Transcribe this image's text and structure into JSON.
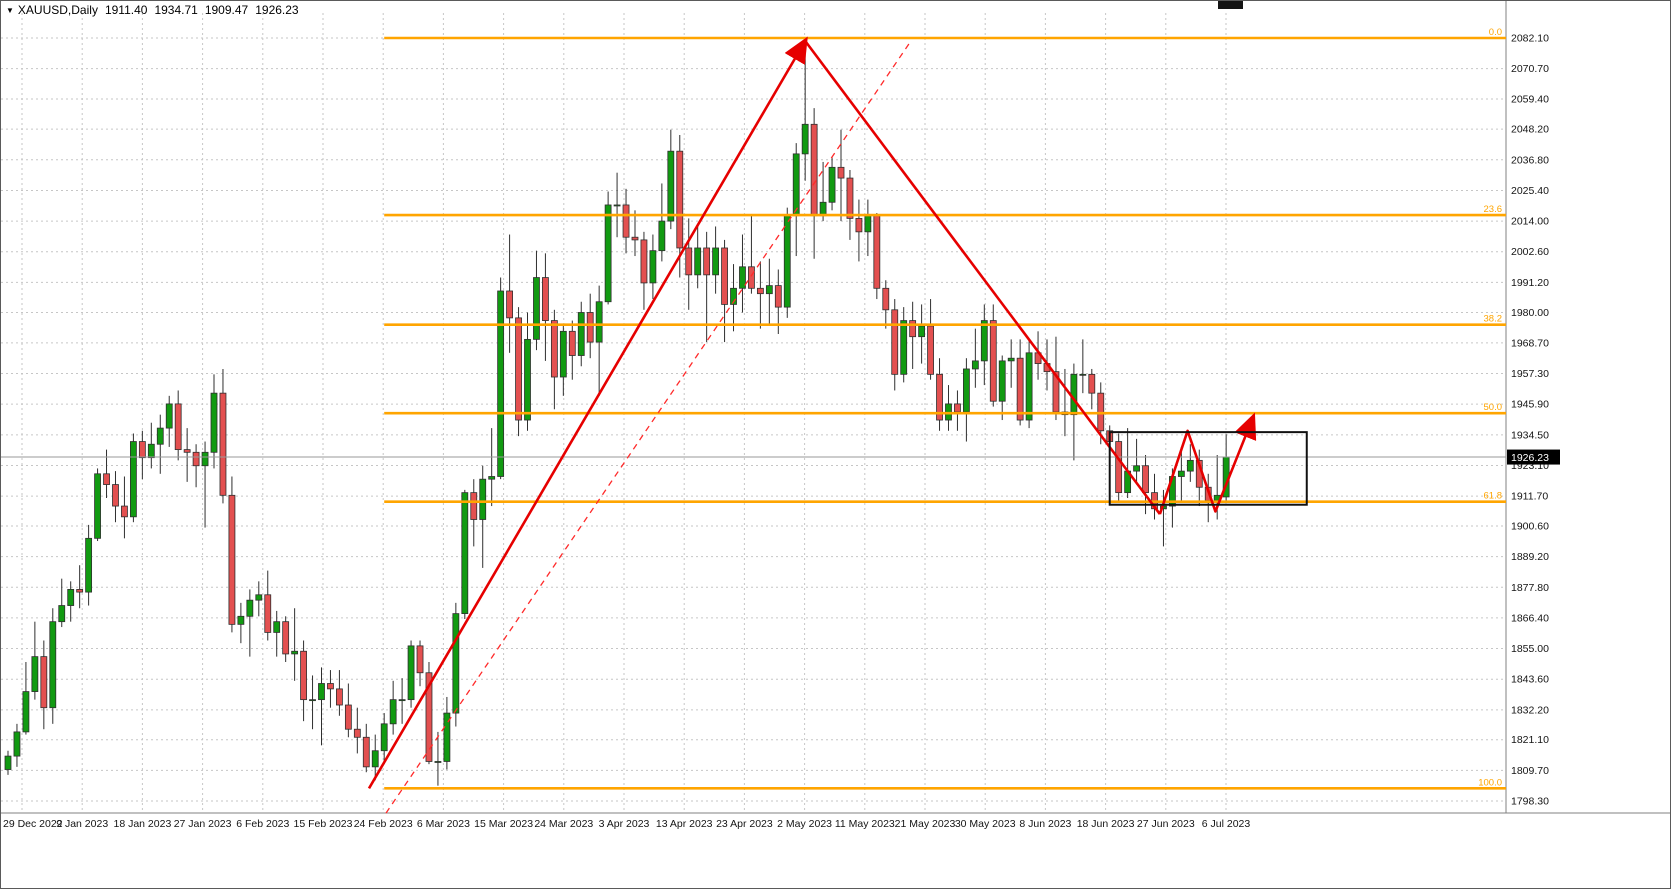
{
  "header": {
    "collapse_icon": "▼",
    "symbol": "XAUUSD,Daily",
    "open": "1911.40",
    "high": "1934.71",
    "low": "1909.47",
    "close": "1926.23"
  },
  "price_axis": {
    "labels": [
      "2082.10",
      "2070.70",
      "2059.40",
      "2048.20",
      "2036.80",
      "2025.40",
      "2014.00",
      "2002.60",
      "1991.20",
      "1980.00",
      "1968.70",
      "1957.30",
      "1945.90",
      "1934.50",
      "1923.10",
      "1911.70",
      "1900.60",
      "1889.20",
      "1877.80",
      "1866.40",
      "1855.00",
      "1843.60",
      "1832.20",
      "1821.10",
      "1809.70",
      "1798.30"
    ],
    "current_price": "1926.23",
    "current_price_bg": "#000000",
    "current_price_color": "#ffffff"
  },
  "time_axis": {
    "labels": [
      "29 Dec 2022",
      "9 Jan 2023",
      "18 Jan 2023",
      "27 Jan 2023",
      "6 Feb 2023",
      "15 Feb 2023",
      "24 Feb 2023",
      "6 Mar 2023",
      "15 Mar 2023",
      "24 Mar 2023",
      "3 Apr 2023",
      "13 Apr 2023",
      "23 Apr 2023",
      "2 May 2023",
      "11 May 2023",
      "21 May 2023",
      "30 May 2023",
      "8 Jun 2023",
      "18 Jun 2023",
      "27 Jun 2023",
      "6 Jul 2023"
    ]
  },
  "chart_data": {
    "type": "candlestick",
    "symbol": "XAUUSD",
    "timeframe": "Daily",
    "title": "XAUUSD,Daily 1911.40 1934.71 1909.47 1926.23",
    "ylim": [
      1793,
      2087
    ],
    "grid": true,
    "legend": "none",
    "colors": {
      "bull": "#119a11",
      "bear": "#e35050",
      "outline": "#2f2f2f",
      "grid": "#c6c6c6",
      "background": "#ffffff",
      "trend": "#e60000",
      "fibonacci": "#ffa500"
    },
    "current_price": 1926.23,
    "candles": [
      [
        "2022-12-29",
        1810,
        1817,
        1808,
        1815
      ],
      [
        "2022-12-30",
        1815,
        1827,
        1811,
        1824
      ],
      [
        "2023-01-03",
        1824,
        1850,
        1823,
        1839
      ],
      [
        "2023-01-04",
        1839,
        1865,
        1836,
        1852
      ],
      [
        "2023-01-05",
        1852,
        1858,
        1825,
        1833
      ],
      [
        "2023-01-06",
        1833,
        1870,
        1827,
        1865
      ],
      [
        "2023-01-09",
        1865,
        1881,
        1863,
        1871
      ],
      [
        "2023-01-10",
        1871,
        1880,
        1865,
        1877
      ],
      [
        "2023-01-11",
        1877,
        1886,
        1870,
        1876
      ],
      [
        "2023-01-12",
        1876,
        1901,
        1871,
        1896
      ],
      [
        "2023-01-13",
        1896,
        1922,
        1895,
        1920
      ],
      [
        "2023-01-16",
        1920,
        1929,
        1911,
        1916
      ],
      [
        "2023-01-17",
        1916,
        1921,
        1902,
        1908
      ],
      [
        "2023-01-18",
        1908,
        1919,
        1896,
        1904
      ],
      [
        "2023-01-19",
        1904,
        1935,
        1902,
        1932
      ],
      [
        "2023-01-20",
        1932,
        1936,
        1918,
        1926
      ],
      [
        "2023-01-23",
        1926,
        1939,
        1922,
        1931
      ],
      [
        "2023-01-24",
        1931,
        1942,
        1920,
        1937
      ],
      [
        "2023-01-25",
        1937,
        1949,
        1930,
        1946
      ],
      [
        "2023-01-26",
        1946,
        1951,
        1925,
        1929
      ],
      [
        "2023-01-27",
        1929,
        1937,
        1917,
        1928
      ],
      [
        "2023-01-30",
        1928,
        1931,
        1915,
        1923
      ],
      [
        "2023-01-31",
        1923,
        1932,
        1900,
        1928
      ],
      [
        "2023-02-01",
        1928,
        1957,
        1922,
        1950
      ],
      [
        "2023-02-02",
        1950,
        1959,
        1909,
        1912
      ],
      [
        "2023-02-03",
        1912,
        1919,
        1861,
        1864
      ],
      [
        "2023-02-06",
        1864,
        1872,
        1857,
        1867
      ],
      [
        "2023-02-07",
        1867,
        1877,
        1852,
        1873
      ],
      [
        "2023-02-08",
        1873,
        1880,
        1867,
        1875
      ],
      [
        "2023-02-09",
        1875,
        1884,
        1858,
        1861
      ],
      [
        "2023-02-10",
        1861,
        1869,
        1852,
        1865
      ],
      [
        "2023-02-13",
        1865,
        1867,
        1850,
        1853
      ],
      [
        "2023-02-14",
        1853,
        1870,
        1843,
        1854
      ],
      [
        "2023-02-15",
        1854,
        1858,
        1828,
        1836
      ],
      [
        "2023-02-16",
        1836,
        1845,
        1825,
        1836
      ],
      [
        "2023-02-17",
        1836,
        1848,
        1819,
        1842
      ],
      [
        "2023-02-20",
        1842,
        1847,
        1833,
        1840
      ],
      [
        "2023-02-21",
        1840,
        1847,
        1830,
        1834
      ],
      [
        "2023-02-22",
        1834,
        1842,
        1822,
        1825
      ],
      [
        "2023-02-23",
        1825,
        1833,
        1816,
        1822
      ],
      [
        "2023-02-24",
        1822,
        1827,
        1809,
        1811
      ],
      [
        "2023-02-27",
        1811,
        1823,
        1806,
        1817
      ],
      [
        "2023-02-28",
        1817,
        1831,
        1812,
        1827
      ],
      [
        "2023-03-01",
        1827,
        1843,
        1823,
        1836
      ],
      [
        "2023-03-02",
        1836,
        1844,
        1827,
        1836
      ],
      [
        "2023-03-03",
        1836,
        1858,
        1833,
        1856
      ],
      [
        "2023-03-06",
        1856,
        1858,
        1841,
        1846
      ],
      [
        "2023-03-07",
        1846,
        1850,
        1812,
        1813
      ],
      [
        "2023-03-08",
        1813,
        1824,
        1804,
        1813
      ],
      [
        "2023-03-09",
        1813,
        1837,
        1810,
        1831
      ],
      [
        "2023-03-10",
        1831,
        1872,
        1826,
        1868
      ],
      [
        "2023-03-13",
        1868,
        1914,
        1866,
        1913
      ],
      [
        "2023-03-14",
        1913,
        1918,
        1893,
        1903
      ],
      [
        "2023-03-15",
        1903,
        1923,
        1885,
        1918
      ],
      [
        "2023-03-16",
        1918,
        1937,
        1908,
        1919
      ],
      [
        "2023-03-17",
        1919,
        1993,
        1918,
        1988
      ],
      [
        "2023-03-20",
        1988,
        2009,
        1965,
        1978
      ],
      [
        "2023-03-21",
        1978,
        1982,
        1934,
        1940
      ],
      [
        "2023-03-22",
        1940,
        1980,
        1936,
        1970
      ],
      [
        "2023-03-23",
        1970,
        2003,
        1966,
        1993
      ],
      [
        "2023-03-24",
        1993,
        2002,
        1962,
        1977
      ],
      [
        "2023-03-27",
        1977,
        1981,
        1944,
        1956
      ],
      [
        "2023-03-28",
        1956,
        1975,
        1949,
        1973
      ],
      [
        "2023-03-29",
        1973,
        1977,
        1955,
        1964
      ],
      [
        "2023-03-30",
        1964,
        1984,
        1960,
        1980
      ],
      [
        "2023-03-31",
        1980,
        1987,
        1963,
        1969
      ],
      [
        "2023-04-03",
        1969,
        1990,
        1949,
        1984
      ],
      [
        "2023-04-04",
        1984,
        2025,
        1983,
        2020
      ],
      [
        "2023-04-05",
        2020,
        2032,
        2008,
        2020
      ],
      [
        "2023-04-06",
        2020,
        2026,
        2002,
        2008
      ],
      [
        "2023-04-07",
        2008,
        2018,
        2001,
        2007
      ],
      [
        "2023-04-10",
        2007,
        2010,
        1981,
        1991
      ],
      [
        "2023-04-11",
        1991,
        2009,
        1985,
        2003
      ],
      [
        "2023-04-12",
        2003,
        2028,
        1999,
        2014
      ],
      [
        "2023-04-13",
        2014,
        2048,
        2011,
        2040
      ],
      [
        "2023-04-14",
        2040,
        2046,
        1993,
        2004
      ],
      [
        "2023-04-17",
        2004,
        2015,
        1981,
        1994
      ],
      [
        "2023-04-18",
        1994,
        2012,
        1989,
        2004
      ],
      [
        "2023-04-19",
        2004,
        2010,
        1969,
        1994
      ],
      [
        "2023-04-20",
        1994,
        2012,
        1987,
        2004
      ],
      [
        "2023-04-21",
        2004,
        2007,
        1969,
        1983
      ],
      [
        "2023-04-24",
        1983,
        1998,
        1973,
        1989
      ],
      [
        "2023-04-25",
        1989,
        2009,
        1980,
        1997
      ],
      [
        "2023-04-26",
        1997,
        2016,
        1987,
        1989
      ],
      [
        "2023-04-27",
        1989,
        1999,
        1974,
        1987
      ],
      [
        "2023-04-28",
        1987,
        2000,
        1975,
        1990
      ],
      [
        "2023-05-01",
        1990,
        1996,
        1972,
        1982
      ],
      [
        "2023-05-02",
        1982,
        2019,
        1978,
        2016
      ],
      [
        "2023-05-03",
        2016,
        2043,
        2001,
        2039
      ],
      [
        "2023-05-04",
        2039,
        2081,
        2029,
        2050
      ],
      [
        "2023-05-05",
        2050,
        2056,
        2000,
        2016
      ],
      [
        "2023-05-08",
        2016,
        2036,
        2014,
        2021
      ],
      [
        "2023-05-09",
        2021,
        2038,
        2018,
        2034
      ],
      [
        "2023-05-10",
        2034,
        2048,
        2014,
        2030
      ],
      [
        "2023-05-11",
        2030,
        2033,
        2007,
        2015
      ],
      [
        "2023-05-12",
        2015,
        2022,
        1999,
        2010
      ],
      [
        "2023-05-15",
        2010,
        2022,
        2001,
        2016
      ],
      [
        "2023-05-16",
        2016,
        2017,
        1985,
        1989
      ],
      [
        "2023-05-17",
        1989,
        1992,
        1974,
        1981
      ],
      [
        "2023-05-18",
        1981,
        1985,
        1951,
        1957
      ],
      [
        "2023-05-19",
        1957,
        1982,
        1954,
        1977
      ],
      [
        "2023-05-22",
        1977,
        1984,
        1959,
        1971
      ],
      [
        "2023-05-23",
        1971,
        1983,
        1961,
        1975
      ],
      [
        "2023-05-24",
        1975,
        1985,
        1955,
        1957
      ],
      [
        "2023-05-25",
        1957,
        1963,
        1936,
        1940
      ],
      [
        "2023-05-26",
        1940,
        1953,
        1936,
        1946
      ],
      [
        "2023-05-29",
        1946,
        1951,
        1936,
        1943
      ],
      [
        "2023-05-30",
        1943,
        1963,
        1932,
        1959
      ],
      [
        "2023-05-31",
        1959,
        1974,
        1952,
        1962
      ],
      [
        "2023-06-01",
        1962,
        1983,
        1953,
        1977
      ],
      [
        "2023-06-02",
        1977,
        1983,
        1945,
        1947
      ],
      [
        "2023-06-05",
        1947,
        1964,
        1940,
        1962
      ],
      [
        "2023-06-06",
        1962,
        1970,
        1952,
        1963
      ],
      [
        "2023-06-07",
        1963,
        1970,
        1938,
        1940
      ],
      [
        "2023-06-08",
        1940,
        1970,
        1937,
        1965
      ],
      [
        "2023-06-09",
        1965,
        1973,
        1955,
        1961
      ],
      [
        "2023-06-12",
        1961,
        1970,
        1951,
        1958
      ],
      [
        "2023-06-13",
        1958,
        1971,
        1940,
        1943
      ],
      [
        "2023-06-14",
        1943,
        1959,
        1934,
        1942
      ],
      [
        "2023-06-15",
        1942,
        1961,
        1925,
        1957
      ],
      [
        "2023-06-16",
        1957,
        1970,
        1950,
        1957
      ],
      [
        "2023-06-19",
        1957,
        1959,
        1944,
        1950
      ],
      [
        "2023-06-20",
        1950,
        1954,
        1931,
        1936
      ],
      [
        "2023-06-21",
        1936,
        1938,
        1922,
        1932
      ],
      [
        "2023-06-22",
        1932,
        1935,
        1910,
        1913
      ],
      [
        "2023-06-23",
        1913,
        1937,
        1911,
        1921
      ],
      [
        "2023-06-26",
        1921,
        1933,
        1916,
        1923
      ],
      [
        "2023-06-27",
        1923,
        1927,
        1905,
        1913
      ],
      [
        "2023-06-28",
        1913,
        1920,
        1903,
        1907
      ],
      [
        "2023-06-29",
        1907,
        1914,
        1893,
        1908
      ],
      [
        "2023-06-30",
        1908,
        1922,
        1900,
        1919
      ],
      [
        "2023-07-03",
        1919,
        1930,
        1910,
        1921
      ],
      [
        "2023-07-04",
        1921,
        1931,
        1917,
        1925
      ],
      [
        "2023-07-05",
        1925,
        1929,
        1908,
        1915
      ],
      [
        "2023-07-06",
        1915,
        1920,
        1902,
        1910
      ],
      [
        "2023-07-07",
        1910,
        1927,
        1903,
        1912
      ],
      [
        "2023-07-10",
        1911.4,
        1934.71,
        1909.47,
        1926.23
      ]
    ],
    "fibonacci": {
      "color": "#ffa500",
      "start_index": 42,
      "levels": [
        {
          "label": "0.0",
          "price": 2082.1
        },
        {
          "label": "23.6",
          "price": 2016.23
        },
        {
          "label": "38.2",
          "price": 1975.48
        },
        {
          "label": "50.0",
          "price": 1942.55
        },
        {
          "label": "61.8",
          "price": 1909.62
        },
        {
          "label": "100.0",
          "price": 1803.0
        }
      ]
    },
    "trendlines": [
      {
        "name": "uptrend",
        "color": "#e60000",
        "width": 2.6,
        "dashed": false,
        "arrow_end": true,
        "points": [
          [
            40.3,
            1803
          ],
          [
            89,
            2081
          ]
        ]
      },
      {
        "name": "downtrend",
        "color": "#e60000",
        "width": 2.6,
        "dashed": false,
        "arrow_end": false,
        "points": [
          [
            89,
            2081
          ],
          [
            128.6,
            1905
          ]
        ]
      },
      {
        "name": "projection-zigzag",
        "color": "#e60000",
        "width": 2.6,
        "dashed": false,
        "arrow_end": true,
        "points": [
          [
            128.6,
            1905
          ],
          [
            131.7,
            1936
          ],
          [
            134.8,
            1906
          ],
          [
            139,
            1941
          ]
        ]
      },
      {
        "name": "dashed-support",
        "color": "#ff2a2a",
        "width": 1.3,
        "dashed": true,
        "arrow_end": false,
        "points": [
          [
            42.2,
            1793.8
          ],
          [
            100.8,
            2081
          ]
        ]
      }
    ],
    "rectangle": {
      "color": "#111111",
      "width": 2,
      "from_index": 123,
      "to_index": 145,
      "top": 1935.5,
      "bottom": 1908.5
    }
  }
}
